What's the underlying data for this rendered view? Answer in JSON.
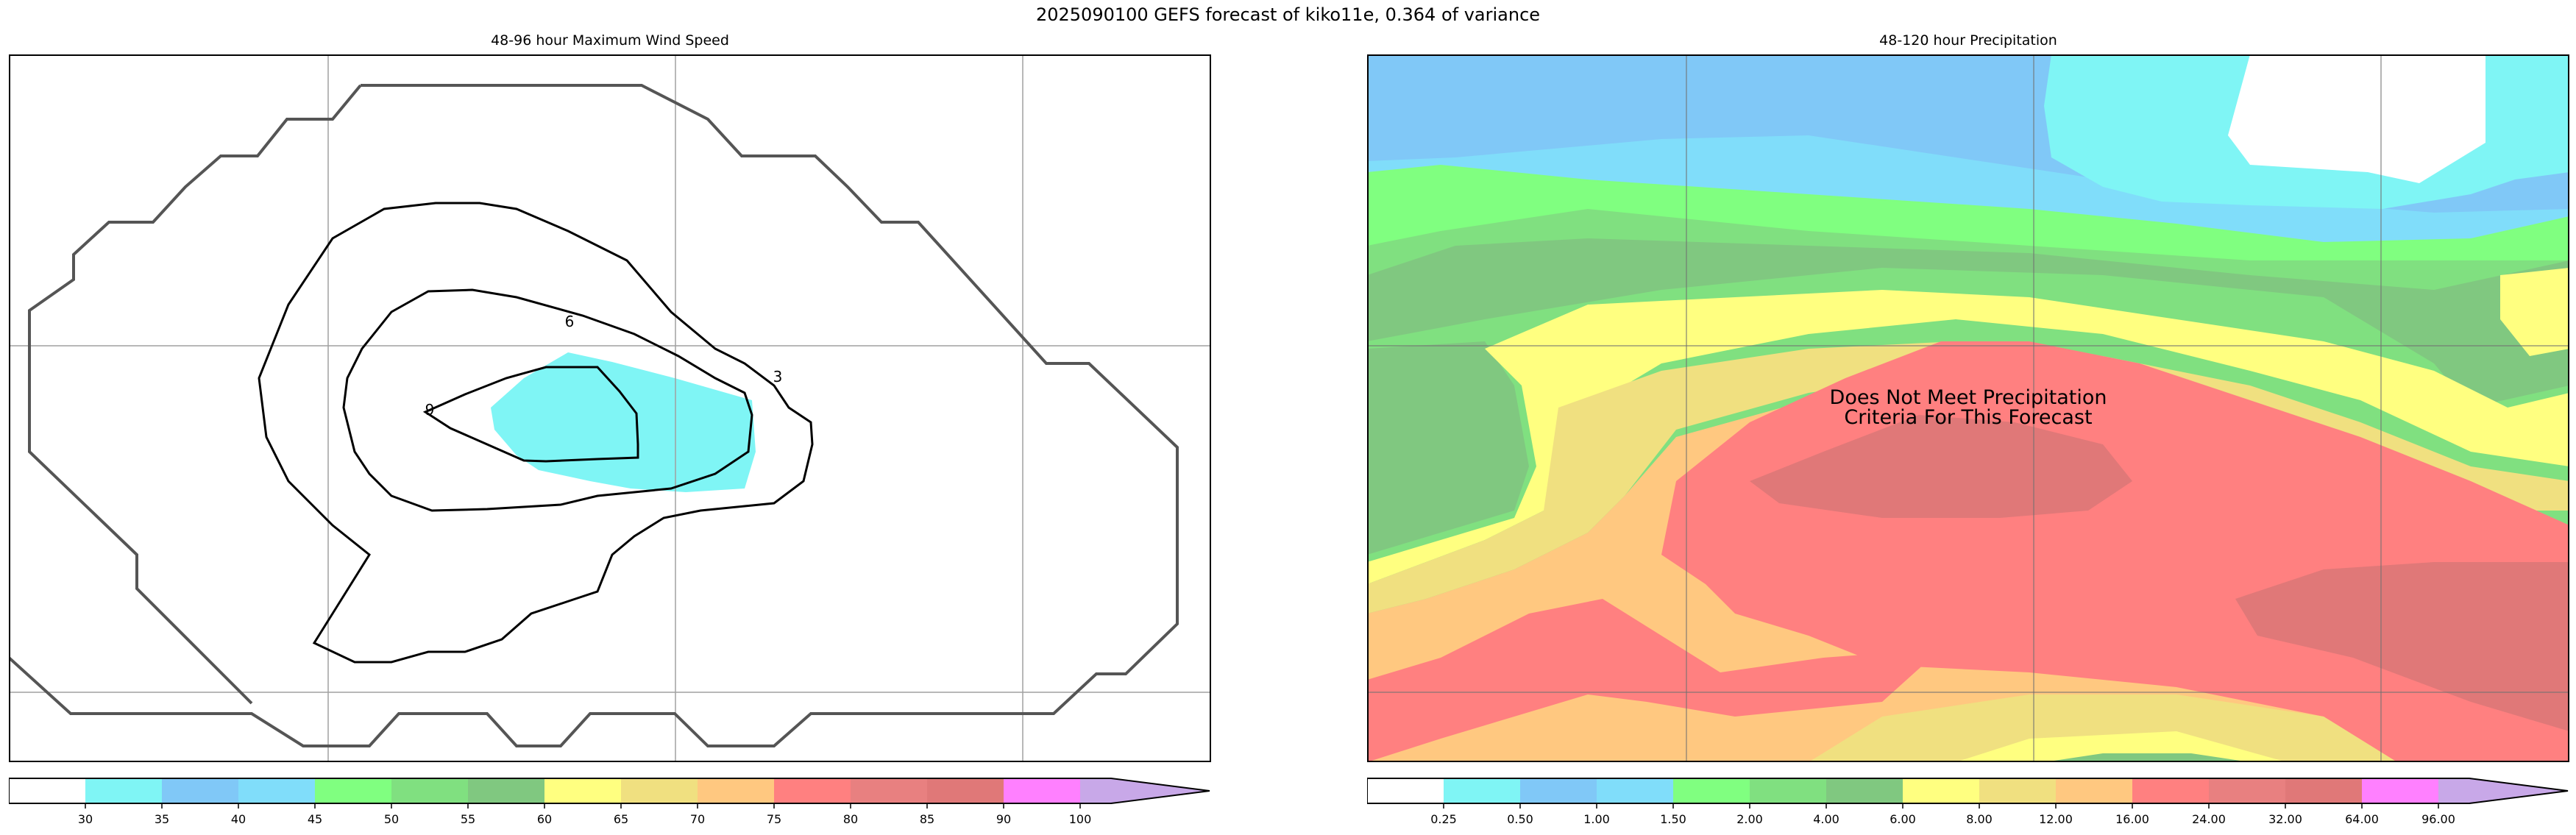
{
  "figure": {
    "suptitle": "2025090100 GEFS forecast of kiko11e, 0.364 of variance"
  },
  "chart_data": [
    {
      "type": "contour",
      "title": "48-96 hour Maximum Wind Speed",
      "contour_labels": [
        "6",
        "3",
        "9"
      ],
      "contour_levels": [
        3,
        6,
        9
      ],
      "grid": true,
      "colorbar": {
        "orientation": "horizontal",
        "extend": "max",
        "tick_labels": [
          "30",
          "35",
          "40",
          "45",
          "50",
          "55",
          "60",
          "65",
          "70",
          "75",
          "80",
          "85",
          "90",
          "100"
        ],
        "colors": [
          "#ffffff",
          "#7ff5f5",
          "#80c8f7",
          "#80ddfa",
          "#80ff80",
          "#80e080",
          "#80c880",
          "#ffff80",
          "#f0e080",
          "#ffc880",
          "#ff8080",
          "#e88080",
          "#e07878",
          "#ff80ff",
          "#c8a8e8"
        ]
      }
    },
    {
      "type": "filled-contour",
      "title": "48-120 hour Precipitation",
      "annotation_line1": "Does Not Meet Precipitation",
      "annotation_line2": "Criteria For This Forecast",
      "grid": true,
      "colorbar": {
        "orientation": "horizontal",
        "extend": "max",
        "tick_labels": [
          "0.25",
          "0.50",
          "1.00",
          "1.50",
          "2.00",
          "4.00",
          "6.00",
          "8.00",
          "12.00",
          "16.00",
          "24.00",
          "32.00",
          "64.00",
          "96.00"
        ],
        "colors": [
          "#ffffff",
          "#7ff5f5",
          "#80c8f7",
          "#80ddfa",
          "#80ff80",
          "#80e080",
          "#80c880",
          "#ffff80",
          "#f0e080",
          "#ffc880",
          "#ff8080",
          "#e88080",
          "#e07878",
          "#ff80ff",
          "#c8a8e8"
        ]
      }
    }
  ]
}
